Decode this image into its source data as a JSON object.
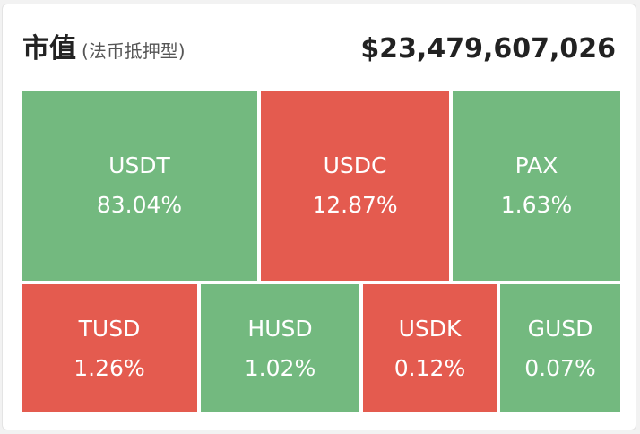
{
  "header": {
    "title": "市值",
    "subtitle": "(法币抵押型)",
    "total": "$23,479,607,026"
  },
  "colors": {
    "up": "#73b97f",
    "down": "#e45b4f"
  },
  "tiles": [
    {
      "symbol": "USDT",
      "share": "83.04%",
      "trend": "up"
    },
    {
      "symbol": "USDC",
      "share": "12.87%",
      "trend": "down"
    },
    {
      "symbol": "PAX",
      "share": "1.63%",
      "trend": "up"
    },
    {
      "symbol": "TUSD",
      "share": "1.26%",
      "trend": "down"
    },
    {
      "symbol": "HUSD",
      "share": "1.02%",
      "trend": "up"
    },
    {
      "symbol": "USDK",
      "share": "0.12%",
      "trend": "down"
    },
    {
      "symbol": "GUSD",
      "share": "0.07%",
      "trend": "up"
    }
  ]
}
